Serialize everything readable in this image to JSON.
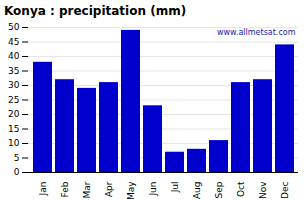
{
  "chart_data": {
    "type": "bar",
    "title": "Konya : precipitation (mm)",
    "categories": [
      "Jan",
      "Feb",
      "Mar",
      "Apr",
      "May",
      "Jun",
      "Jul",
      "Aug",
      "Sep",
      "Oct",
      "Nov",
      "Dec"
    ],
    "values": [
      38,
      32,
      29,
      31,
      49,
      23,
      7,
      8,
      11,
      31,
      32,
      44
    ],
    "color": "#0000cc",
    "ylim": [
      0,
      50
    ],
    "yticks": [
      0,
      5,
      10,
      15,
      20,
      25,
      30,
      35,
      40,
      45,
      50
    ],
    "grid": true,
    "annotations": [
      {
        "text": "www.allmetsat.com",
        "color": "#2222aa"
      }
    ]
  }
}
